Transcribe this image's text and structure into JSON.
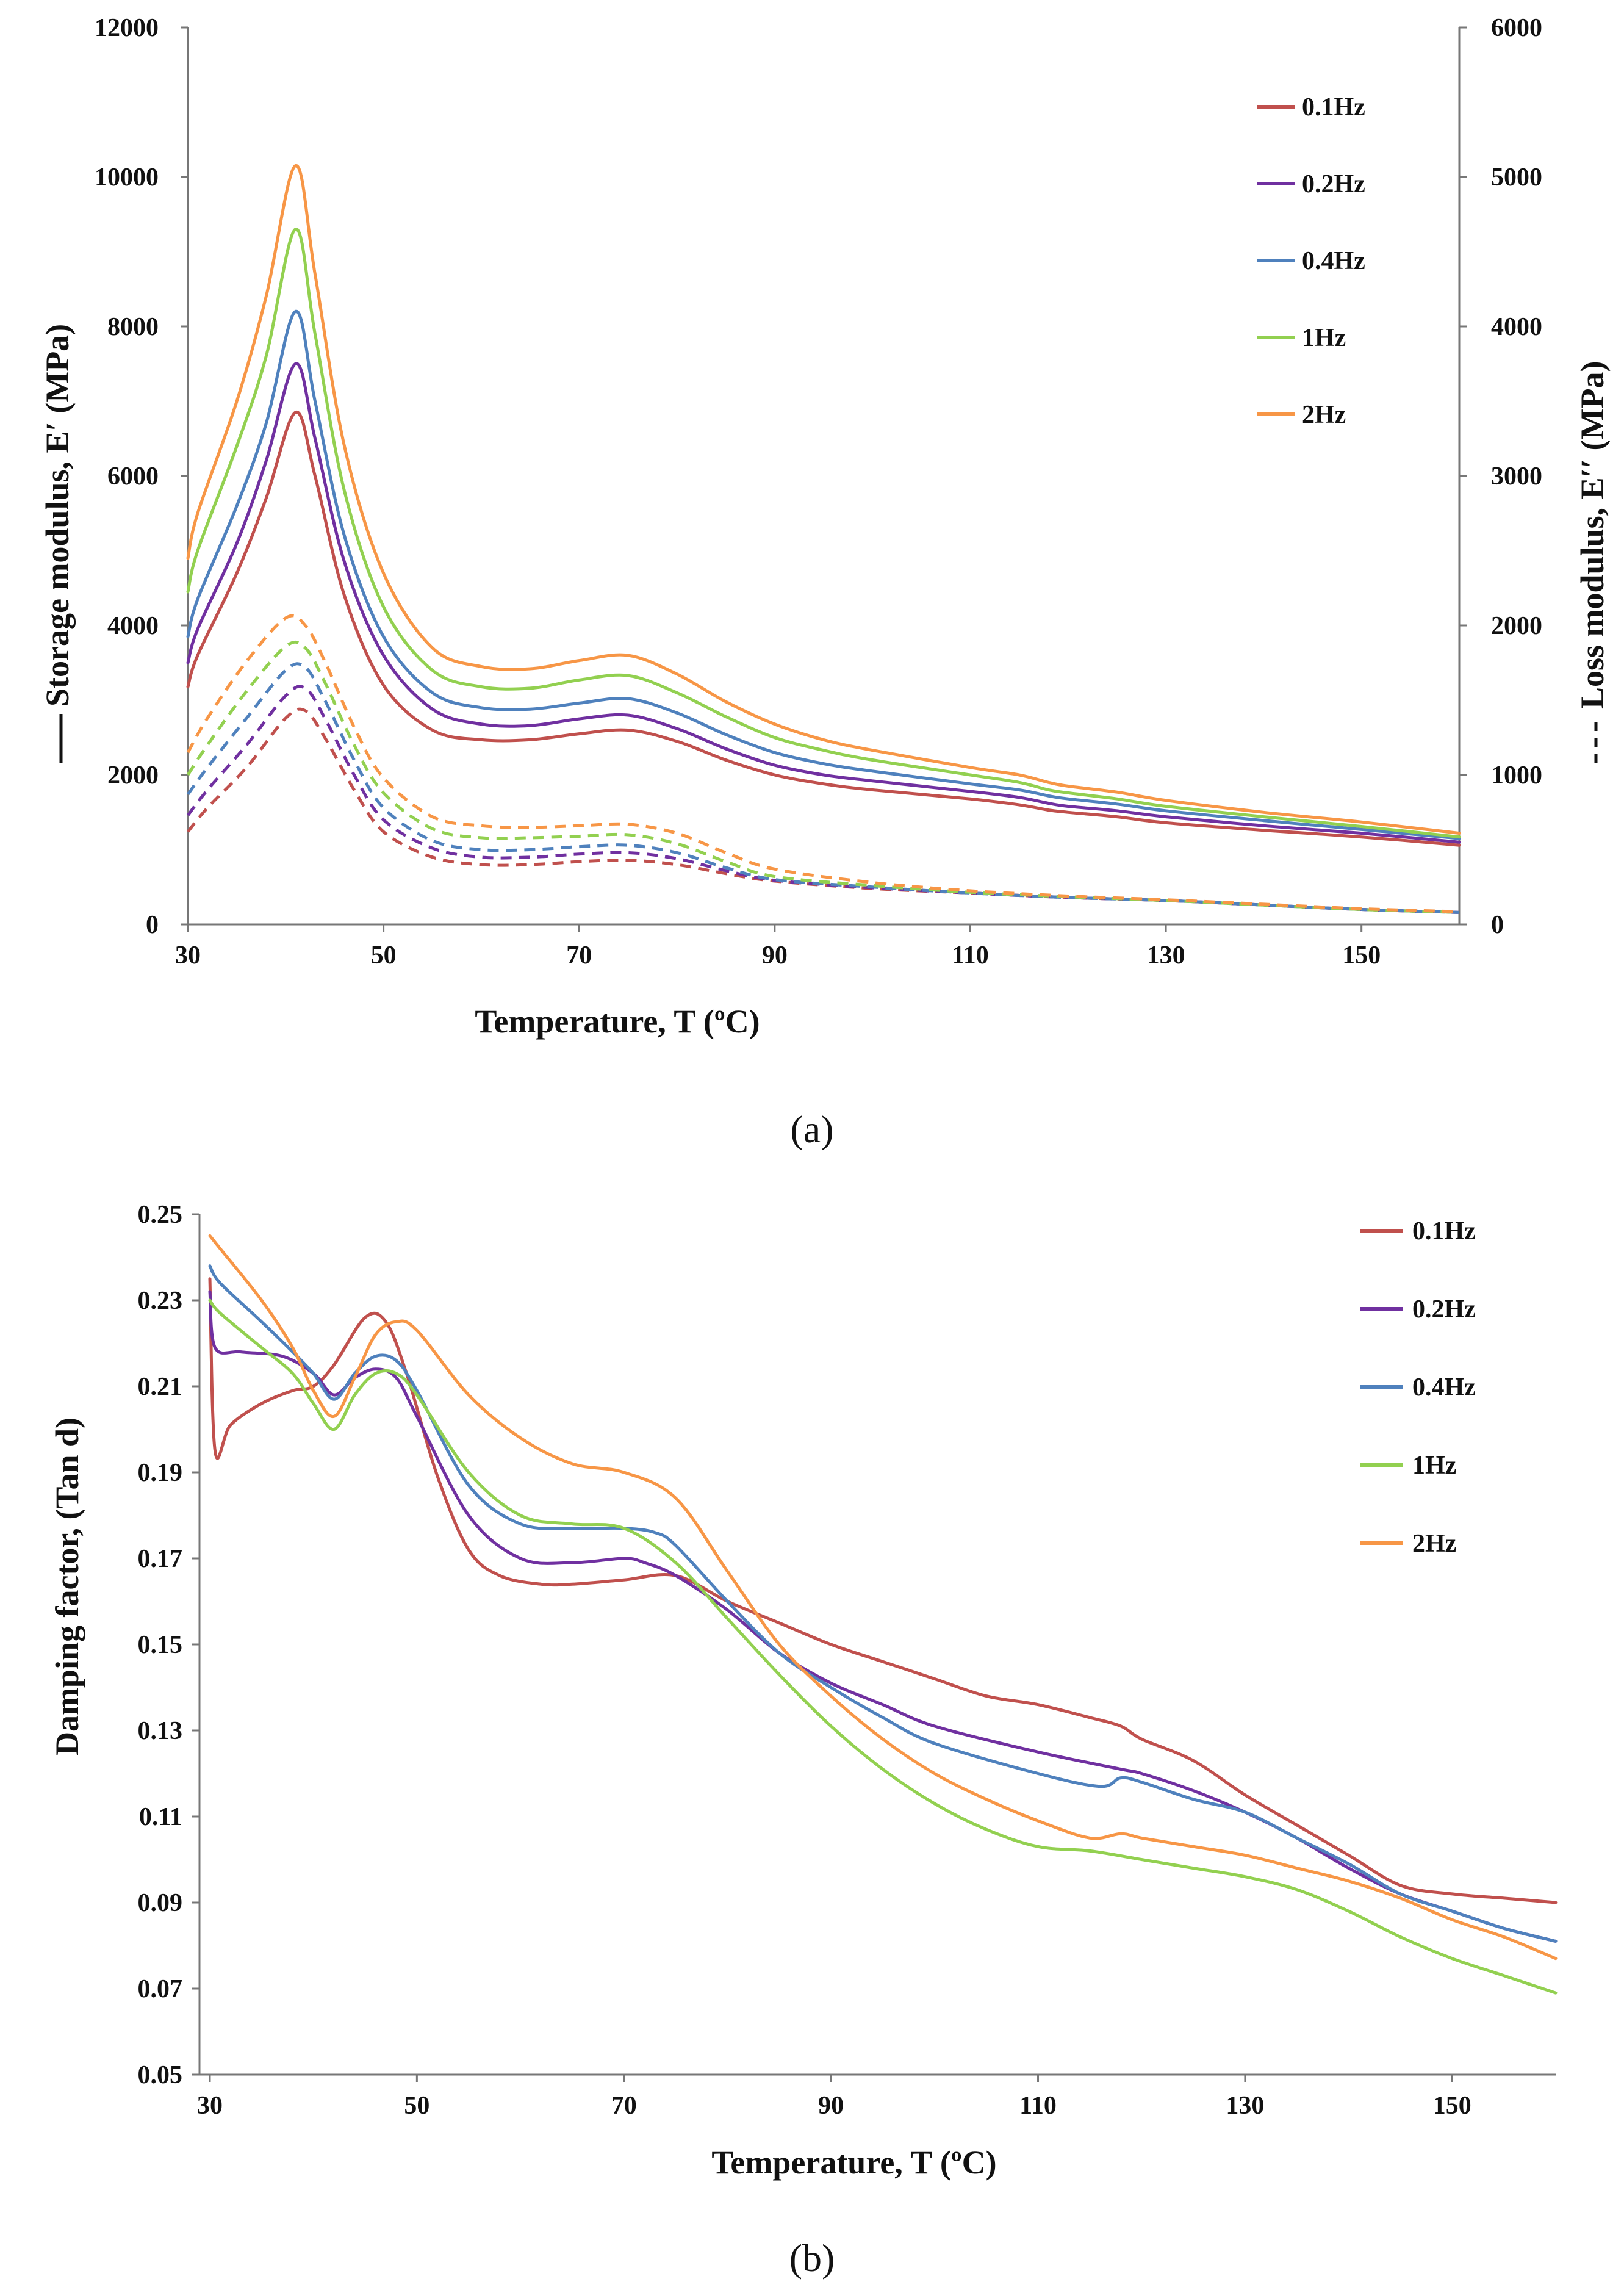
{
  "colors": {
    "0.1Hz": "#c0504d",
    "0.2Hz": "#7030a0",
    "0.4Hz": "#4f81bd",
    "1Hz": "#92d050",
    "2Hz": "#f79646"
  },
  "chart_data": [
    {
      "id": "a",
      "panel_label": "(a)",
      "type": "line",
      "title": "",
      "xlabel": "Temperature, T (ºC)",
      "ylabel_left": "Storage modulus, E′ (MPa)",
      "ylabel_right": "Loss modulus, E′′ (MPa)",
      "xlim": [
        30,
        160
      ],
      "xticks": [
        30,
        50,
        70,
        90,
        110,
        130,
        150
      ],
      "ylim_left": [
        0,
        12000
      ],
      "yticks_left": [
        0,
        2000,
        4000,
        6000,
        8000,
        10000,
        12000
      ],
      "ylim_right": [
        0,
        6000
      ],
      "yticks_right": [
        0,
        1000,
        2000,
        3000,
        4000,
        5000,
        6000
      ],
      "legend": [
        "0.1Hz",
        "0.2Hz",
        "0.4Hz",
        "1Hz",
        "2Hz"
      ],
      "legend_position": "top-right",
      "grid": false,
      "series_storage": [
        {
          "name": "0.1Hz",
          "x": [
            30,
            31,
            35,
            38,
            41,
            43,
            46,
            50,
            55,
            60,
            65,
            70,
            75,
            80,
            85,
            90,
            95,
            100,
            110,
            115,
            118,
            120,
            125,
            130,
            140,
            150,
            160
          ],
          "values": [
            3180,
            3600,
            4700,
            5700,
            6850,
            6000,
            4400,
            3200,
            2600,
            2470,
            2470,
            2550,
            2600,
            2450,
            2200,
            2000,
            1880,
            1800,
            1680,
            1600,
            1530,
            1500,
            1440,
            1360,
            1260,
            1170,
            1060
          ]
        },
        {
          "name": "0.2Hz",
          "x": [
            30,
            31,
            35,
            38,
            41,
            43,
            46,
            50,
            55,
            60,
            65,
            70,
            75,
            80,
            85,
            90,
            95,
            100,
            110,
            115,
            118,
            120,
            125,
            130,
            140,
            150,
            160
          ],
          "values": [
            3500,
            3950,
            5100,
            6200,
            7500,
            6500,
            4850,
            3600,
            2880,
            2680,
            2660,
            2750,
            2800,
            2620,
            2350,
            2130,
            2000,
            1920,
            1780,
            1700,
            1620,
            1580,
            1520,
            1440,
            1320,
            1220,
            1100
          ]
        },
        {
          "name": "0.4Hz",
          "x": [
            30,
            31,
            35,
            38,
            41,
            43,
            46,
            50,
            55,
            60,
            65,
            70,
            75,
            80,
            85,
            90,
            95,
            100,
            110,
            115,
            118,
            120,
            125,
            130,
            140,
            150,
            160
          ],
          "values": [
            3850,
            4350,
            5600,
            6700,
            8200,
            7000,
            5200,
            3850,
            3100,
            2900,
            2880,
            2960,
            3020,
            2830,
            2540,
            2300,
            2150,
            2050,
            1880,
            1800,
            1720,
            1680,
            1610,
            1520,
            1390,
            1270,
            1150
          ]
        },
        {
          "name": "1Hz",
          "x": [
            30,
            31,
            35,
            38,
            41,
            43,
            46,
            50,
            55,
            60,
            65,
            70,
            75,
            80,
            85,
            90,
            95,
            100,
            110,
            115,
            118,
            120,
            125,
            130,
            140,
            150,
            160
          ],
          "values": [
            4450,
            5000,
            6400,
            7600,
            9300,
            7900,
            5800,
            4250,
            3400,
            3180,
            3160,
            3270,
            3330,
            3100,
            2780,
            2500,
            2330,
            2200,
            2000,
            1900,
            1800,
            1760,
            1680,
            1580,
            1440,
            1310,
            1170
          ]
        },
        {
          "name": "2Hz",
          "x": [
            30,
            31,
            35,
            38,
            41,
            43,
            46,
            50,
            55,
            60,
            65,
            70,
            75,
            80,
            85,
            90,
            95,
            100,
            110,
            115,
            118,
            120,
            125,
            130,
            140,
            150,
            160
          ],
          "values": [
            4900,
            5500,
            7000,
            8400,
            10150,
            8700,
            6400,
            4700,
            3700,
            3450,
            3420,
            3530,
            3600,
            3350,
            2980,
            2680,
            2470,
            2330,
            2100,
            2000,
            1900,
            1850,
            1770,
            1660,
            1500,
            1370,
            1220
          ]
        }
      ],
      "series_loss": [
        {
          "name": "0.1Hz",
          "x": [
            30,
            32,
            36,
            40,
            42,
            44,
            47,
            50,
            55,
            60,
            65,
            70,
            75,
            80,
            85,
            90,
            100,
            110,
            120,
            130,
            140,
            150,
            160
          ],
          "values": [
            620,
            780,
            1050,
            1380,
            1430,
            1250,
            900,
            620,
            450,
            400,
            400,
            420,
            430,
            400,
            340,
            290,
            240,
            210,
            180,
            160,
            130,
            100,
            80
          ]
        },
        {
          "name": "0.2Hz",
          "x": [
            30,
            32,
            36,
            40,
            42,
            44,
            47,
            50,
            55,
            60,
            65,
            70,
            75,
            80,
            85,
            90,
            100,
            110,
            120,
            130,
            140,
            150,
            160
          ],
          "values": [
            730,
            900,
            1200,
            1530,
            1580,
            1380,
            1000,
            700,
            510,
            450,
            450,
            470,
            480,
            440,
            360,
            295,
            245,
            210,
            180,
            160,
            130,
            100,
            80
          ]
        },
        {
          "name": "0.4Hz",
          "x": [
            30,
            32,
            36,
            40,
            42,
            44,
            47,
            50,
            55,
            60,
            65,
            70,
            75,
            80,
            85,
            90,
            100,
            110,
            120,
            130,
            140,
            150,
            160
          ],
          "values": [
            870,
            1050,
            1380,
            1700,
            1720,
            1500,
            1100,
            780,
            560,
            500,
            500,
            520,
            530,
            480,
            380,
            300,
            250,
            210,
            180,
            160,
            130,
            100,
            80
          ]
        },
        {
          "name": "1Hz",
          "x": [
            30,
            32,
            36,
            40,
            42,
            44,
            47,
            50,
            55,
            60,
            65,
            70,
            75,
            80,
            85,
            90,
            100,
            110,
            120,
            130,
            140,
            150,
            160
          ],
          "values": [
            1000,
            1200,
            1560,
            1860,
            1850,
            1620,
            1200,
            880,
            640,
            580,
            580,
            590,
            600,
            540,
            420,
            320,
            260,
            215,
            185,
            160,
            130,
            100,
            80
          ]
        },
        {
          "name": "2Hz",
          "x": [
            30,
            32,
            36,
            40,
            42,
            44,
            47,
            50,
            55,
            60,
            65,
            70,
            75,
            80,
            85,
            90,
            100,
            110,
            120,
            130,
            140,
            150,
            160
          ],
          "values": [
            1150,
            1380,
            1760,
            2050,
            2000,
            1760,
            1320,
            980,
            720,
            660,
            650,
            660,
            670,
            610,
            480,
            370,
            280,
            225,
            190,
            165,
            135,
            105,
            85
          ]
        }
      ]
    },
    {
      "id": "b",
      "panel_label": "(b)",
      "type": "line",
      "title": "",
      "xlabel": "Temperature, T (ºC)",
      "ylabel": "Damping factor, (Tan d)",
      "xlim": [
        29,
        160
      ],
      "xticks": [
        30,
        50,
        70,
        90,
        110,
        130,
        150
      ],
      "ylim": [
        0.05,
        0.25
      ],
      "yticks": [
        0.05,
        0.07,
        0.09,
        0.11,
        0.13,
        0.15,
        0.17,
        0.19,
        0.21,
        0.23,
        0.25
      ],
      "legend": [
        "0.1Hz",
        "0.2Hz",
        "0.4Hz",
        "1Hz",
        "2Hz"
      ],
      "legend_position": "top-right",
      "grid": false,
      "series": [
        {
          "name": "0.1Hz",
          "x": [
            30,
            30.5,
            32,
            35,
            38,
            40,
            42,
            45,
            47,
            49,
            52,
            55,
            58,
            62,
            65,
            70,
            75,
            80,
            85,
            90,
            95,
            100,
            105,
            110,
            115,
            118,
            120,
            125,
            130,
            135,
            140,
            145,
            150,
            155,
            160
          ],
          "values": [
            0.235,
            0.195,
            0.201,
            0.206,
            0.209,
            0.21,
            0.215,
            0.226,
            0.225,
            0.213,
            0.189,
            0.172,
            0.166,
            0.164,
            0.164,
            0.165,
            0.166,
            0.16,
            0.155,
            0.15,
            0.146,
            0.142,
            0.138,
            0.136,
            0.133,
            0.131,
            0.128,
            0.123,
            0.115,
            0.108,
            0.101,
            0.094,
            0.092,
            0.091,
            0.09
          ]
        },
        {
          "name": "0.2Hz",
          "x": [
            30,
            30.5,
            33,
            37,
            40,
            42,
            44,
            46,
            48,
            50,
            55,
            60,
            65,
            70,
            72,
            75,
            80,
            85,
            90,
            95,
            100,
            110,
            118,
            120,
            125,
            130,
            135,
            140,
            145,
            150,
            155,
            160
          ],
          "values": [
            0.232,
            0.219,
            0.218,
            0.217,
            0.213,
            0.208,
            0.212,
            0.214,
            0.212,
            0.203,
            0.18,
            0.17,
            0.169,
            0.17,
            0.169,
            0.166,
            0.158,
            0.148,
            0.141,
            0.136,
            0.131,
            0.125,
            0.121,
            0.12,
            0.116,
            0.111,
            0.105,
            0.098,
            0.092,
            0.088,
            0.084,
            0.081
          ]
        },
        {
          "name": "0.4Hz",
          "x": [
            30,
            31,
            35,
            38,
            40,
            42,
            44,
            46,
            48,
            50,
            55,
            60,
            65,
            70,
            73,
            75,
            80,
            85,
            90,
            95,
            100,
            110,
            116,
            118,
            120,
            125,
            130,
            135,
            140,
            145,
            150,
            155,
            160
          ],
          "values": [
            0.238,
            0.234,
            0.225,
            0.218,
            0.213,
            0.207,
            0.213,
            0.217,
            0.216,
            0.209,
            0.187,
            0.178,
            0.177,
            0.177,
            0.176,
            0.173,
            0.16,
            0.148,
            0.14,
            0.133,
            0.127,
            0.12,
            0.117,
            0.119,
            0.118,
            0.114,
            0.111,
            0.105,
            0.099,
            0.092,
            0.088,
            0.084,
            0.081
          ]
        },
        {
          "name": "1Hz",
          "x": [
            30,
            31,
            35,
            38,
            40,
            42,
            44,
            46,
            48,
            50,
            55,
            60,
            65,
            70,
            75,
            80,
            85,
            90,
            95,
            100,
            105,
            110,
            115,
            120,
            125,
            130,
            135,
            140,
            145,
            150,
            155,
            160
          ],
          "values": [
            0.23,
            0.227,
            0.219,
            0.213,
            0.206,
            0.2,
            0.208,
            0.213,
            0.213,
            0.208,
            0.19,
            0.18,
            0.178,
            0.177,
            0.169,
            0.156,
            0.143,
            0.131,
            0.121,
            0.113,
            0.107,
            0.103,
            0.102,
            0.1,
            0.098,
            0.096,
            0.093,
            0.088,
            0.082,
            0.077,
            0.073,
            0.069
          ]
        },
        {
          "name": "2Hz",
          "x": [
            30,
            31,
            35,
            38,
            40,
            42,
            44,
            46,
            48,
            50,
            55,
            60,
            65,
            70,
            75,
            80,
            85,
            90,
            95,
            100,
            105,
            110,
            115,
            118,
            120,
            125,
            130,
            135,
            140,
            145,
            150,
            155,
            160
          ],
          "values": [
            0.245,
            0.242,
            0.23,
            0.219,
            0.209,
            0.203,
            0.212,
            0.222,
            0.225,
            0.223,
            0.208,
            0.198,
            0.192,
            0.19,
            0.184,
            0.167,
            0.15,
            0.138,
            0.128,
            0.12,
            0.114,
            0.109,
            0.105,
            0.106,
            0.105,
            0.103,
            0.101,
            0.098,
            0.095,
            0.091,
            0.086,
            0.082,
            0.077
          ]
        }
      ]
    }
  ]
}
